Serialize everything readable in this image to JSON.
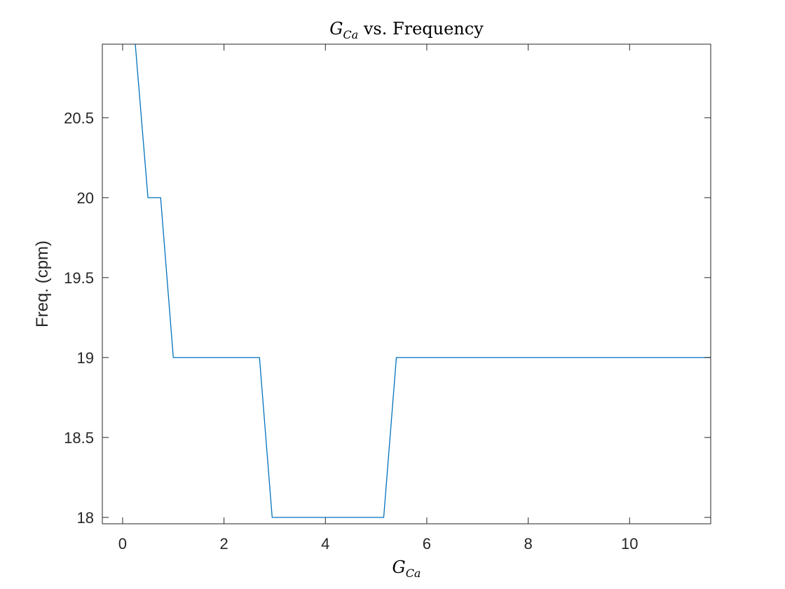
{
  "chart_data": {
    "type": "line",
    "title": {
      "symbol": "G",
      "subscript": "Ca",
      "rest": " vs. Frequency"
    },
    "xlabel": {
      "symbol": "G",
      "subscript": "Ca"
    },
    "ylabel": "Freq. (cpm)",
    "xlim": [
      -0.4,
      11.6
    ],
    "ylim": [
      17.96,
      20.96
    ],
    "x_ticks": [
      0,
      2,
      4,
      6,
      8,
      10
    ],
    "x_tick_labels": [
      "0",
      "2",
      "4",
      "6",
      "8",
      "10"
    ],
    "y_ticks": [
      18,
      18.5,
      19,
      19.5,
      20,
      20.5
    ],
    "y_tick_labels": [
      "18",
      "18.5",
      "19",
      "19.5",
      "20",
      "20.5"
    ],
    "grid": false,
    "color": "#0072BD",
    "series": [
      {
        "x": [
          0.25,
          0.5,
          0.75,
          1.0,
          2.7,
          2.95,
          5.15,
          5.4,
          11.6
        ],
        "y": [
          20.96,
          20.0,
          20.0,
          19.0,
          19.0,
          18.0,
          18.0,
          19.0,
          19.0
        ]
      }
    ]
  }
}
